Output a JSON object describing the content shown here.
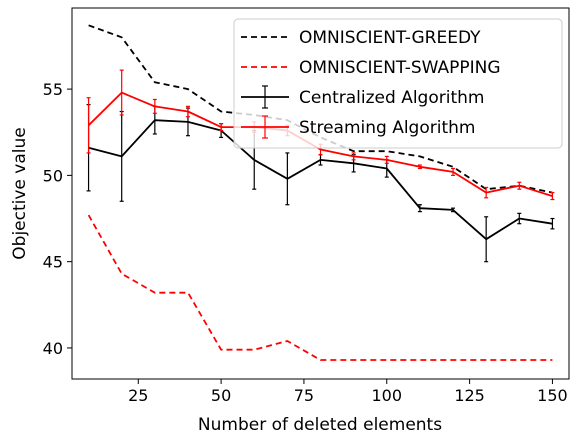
{
  "chart_data": {
    "type": "line",
    "xlabel": "Number of deleted elements",
    "ylabel": "Objective value",
    "xlim": [
      5,
      155
    ],
    "ylim": [
      38.2,
      59.7
    ],
    "xticks": [
      25,
      50,
      75,
      100,
      125,
      150
    ],
    "yticks": [
      40,
      45,
      50,
      55
    ],
    "grid": false,
    "legend_position": "top-right",
    "x": [
      10,
      20,
      30,
      40,
      50,
      60,
      70,
      80,
      90,
      100,
      110,
      120,
      130,
      140,
      150
    ],
    "series": [
      {
        "name": "OMNISCIENT-GREEDY",
        "color": "#000000",
        "style": "dashed",
        "values": [
          58.7,
          58.0,
          55.4,
          55.0,
          53.7,
          53.5,
          53.2,
          52.2,
          51.4,
          51.4,
          51.1,
          50.5,
          49.2,
          49.4,
          49.0
        ]
      },
      {
        "name": "OMNISCIENT-SWAPPING",
        "color": "#ff0000",
        "style": "dashed",
        "values": [
          47.7,
          44.3,
          43.2,
          43.2,
          39.9,
          39.9,
          40.4,
          39.3,
          39.3,
          39.3,
          39.3,
          39.3,
          39.3,
          39.3,
          39.3
        ]
      },
      {
        "name": "Centralized Algorithm",
        "color": "#000000",
        "style": "solid",
        "values": [
          51.6,
          51.1,
          53.2,
          53.1,
          52.6,
          50.9,
          49.8,
          50.9,
          50.7,
          50.4,
          48.1,
          48.0,
          46.3,
          47.5,
          47.2
        ],
        "errors": [
          2.5,
          2.6,
          0.8,
          0.8,
          0.4,
          1.7,
          1.5,
          0.3,
          0.5,
          0.5,
          0.2,
          0.1,
          1.3,
          0.3,
          0.3
        ]
      },
      {
        "name": "Streaming Algorithm",
        "color": "#ff0000",
        "style": "solid",
        "values": [
          52.9,
          54.8,
          54.0,
          53.7,
          52.8,
          52.8,
          52.6,
          51.5,
          51.1,
          50.9,
          50.5,
          50.2,
          49.0,
          49.4,
          48.8
        ],
        "errors": [
          1.6,
          1.3,
          0.4,
          0.3,
          0.2,
          0.3,
          0.3,
          0.3,
          0.2,
          0.2,
          0.1,
          0.2,
          0.3,
          0.2,
          0.2
        ]
      }
    ]
  }
}
